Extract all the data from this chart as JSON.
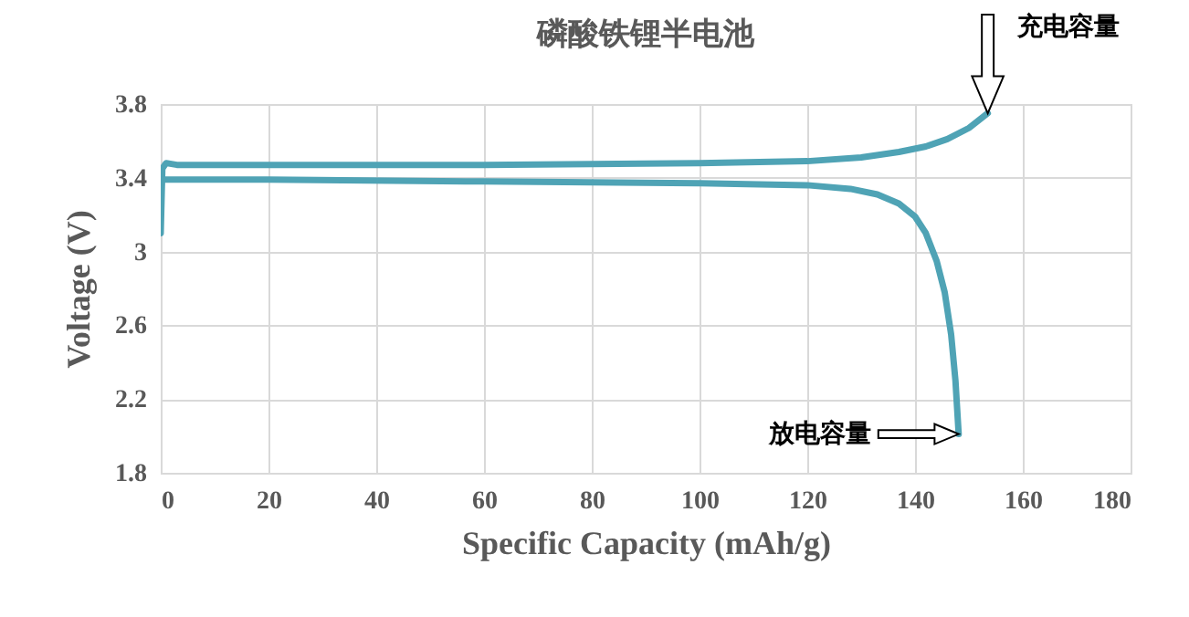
{
  "chart_data": {
    "type": "line",
    "title": "磷酸铁锂半电池",
    "xlabel": "Specific Capacity (mAh/g)",
    "ylabel": "Voltage (V)",
    "xlim": [
      0,
      180
    ],
    "xticks": [
      0,
      20,
      40,
      60,
      80,
      100,
      120,
      140,
      160,
      180
    ],
    "ylim": [
      1.8,
      3.8
    ],
    "yticks": [
      1.8,
      2.2,
      2.6,
      3,
      3.4,
      3.8
    ],
    "grid": true,
    "legend": false,
    "marker": "none",
    "line_style": "solid",
    "series": [
      {
        "color": "#4fa3b5",
        "x": [
          0,
          0.3,
          1,
          3,
          20,
          60,
          100,
          120,
          130,
          137,
          142,
          146,
          150,
          153.5
        ],
        "values": [
          3.1,
          3.45,
          3.48,
          3.47,
          3.47,
          3.47,
          3.48,
          3.49,
          3.51,
          3.54,
          3.57,
          3.61,
          3.67,
          3.75
        ]
      },
      {
        "color": "#4fa3b5",
        "x": [
          0,
          1,
          20,
          60,
          100,
          120,
          128,
          133,
          137,
          140,
          142,
          144,
          145.5,
          146.7,
          147.5,
          148.1
        ],
        "values": [
          3.39,
          3.39,
          3.39,
          3.38,
          3.37,
          3.36,
          3.34,
          3.31,
          3.26,
          3.19,
          3.1,
          2.95,
          2.78,
          2.55,
          2.3,
          2.01
        ]
      }
    ],
    "annotations": [
      "充电容量",
      "放电容量"
    ]
  }
}
